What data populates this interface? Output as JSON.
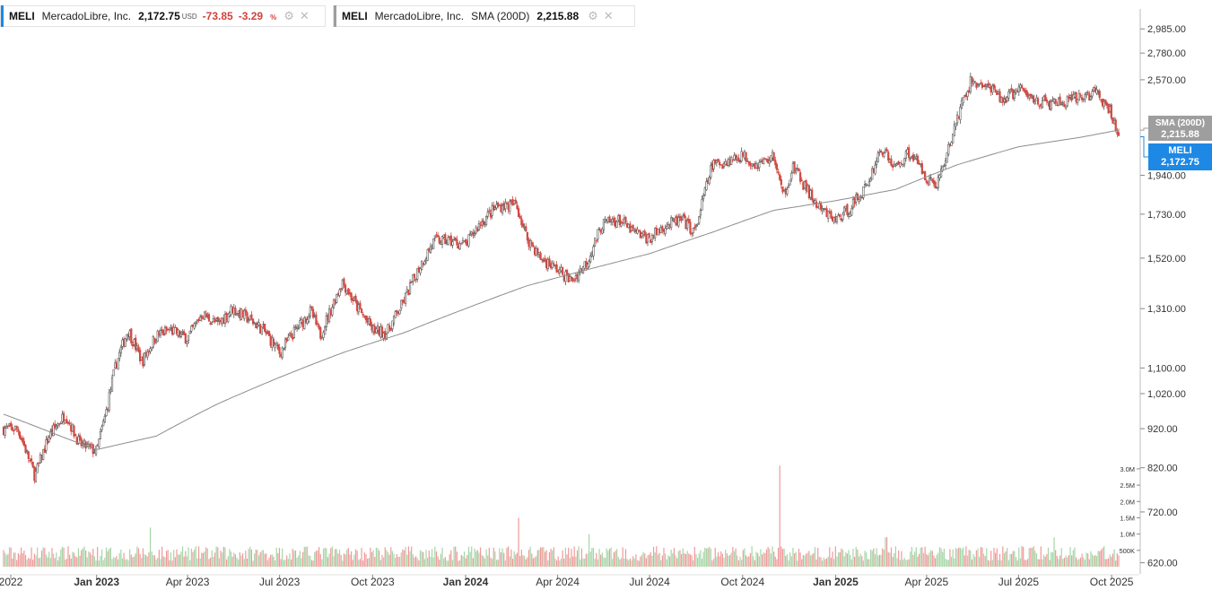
{
  "legend": {
    "main": {
      "symbol": "MELI",
      "name": "MercadoLibre, Inc.",
      "price": "2,172.75",
      "currency": "USD",
      "change": "-73.85",
      "change_pct": "-3.29",
      "pct_sign": "%",
      "accent": "#1e88e5"
    },
    "sma": {
      "symbol": "MELI",
      "name": "MercadoLibre, Inc.",
      "indicator": "SMA (200D)",
      "value": "2,215.88",
      "accent": "#9e9e9e"
    },
    "icons": [
      "settings-icon",
      "close-icon"
    ]
  },
  "tags": {
    "sma": {
      "label": "SMA (200D)",
      "value": "2,215.88",
      "color": "#9e9e9e"
    },
    "price": {
      "label": "MELI",
      "value": "2,172.75",
      "color": "#1e88e5"
    }
  },
  "chart_data": {
    "type": "candlestick",
    "y_scale": "log",
    "ylim": [
      600,
      3250
    ],
    "price_ticks": [
      {
        "value": 2985,
        "label": "2,985.00"
      },
      {
        "value": 2780,
        "label": "2,780.00"
      },
      {
        "value": 2570,
        "label": "2,570.00"
      },
      {
        "value": 1940,
        "label": "1,940.00"
      },
      {
        "value": 1730,
        "label": "1,730.00"
      },
      {
        "value": 1520,
        "label": "1,520.00"
      },
      {
        "value": 1310,
        "label": "1,310.00"
      },
      {
        "value": 1100,
        "label": "1,100.00"
      },
      {
        "value": 1020,
        "label": "1,020.00"
      },
      {
        "value": 920,
        "label": "920.00"
      },
      {
        "value": 820,
        "label": "820.00"
      },
      {
        "value": 720,
        "label": "720.00"
      },
      {
        "value": 620,
        "label": "620.00"
      }
    ],
    "volume_ticks": [
      "3.0M",
      "2.5M",
      "2.0M",
      "1.5M",
      "1.0M",
      "500K"
    ],
    "x_ticks": [
      {
        "date": "2022-10",
        "label": "2022",
        "bold": false
      },
      {
        "date": "2023-01",
        "label": "Jan 2023",
        "bold": true
      },
      {
        "date": "2023-04",
        "label": "Apr 2023",
        "bold": false
      },
      {
        "date": "2023-07",
        "label": "Jul 2023",
        "bold": false
      },
      {
        "date": "2023-10",
        "label": "Oct 2023",
        "bold": false
      },
      {
        "date": "2024-01",
        "label": "Jan 2024",
        "bold": true
      },
      {
        "date": "2024-04",
        "label": "Apr 2024",
        "bold": false
      },
      {
        "date": "2024-07",
        "label": "Jul 2024",
        "bold": false
      },
      {
        "date": "2024-10",
        "label": "Oct 2024",
        "bold": false
      },
      {
        "date": "2025-01",
        "label": "Jan 2025",
        "bold": true
      },
      {
        "date": "2025-04",
        "label": "Apr 2025",
        "bold": false
      },
      {
        "date": "2025-07",
        "label": "Jul 2025",
        "bold": false
      },
      {
        "date": "2025-10",
        "label": "Oct 2025",
        "bold": false
      }
    ],
    "price_path": [
      [
        "2022-10-15",
        920
      ],
      [
        "2022-11-01",
        800
      ],
      [
        "2022-11-15",
        900
      ],
      [
        "2022-12-01",
        960
      ],
      [
        "2022-12-15",
        880
      ],
      [
        "2023-01-01",
        860
      ],
      [
        "2023-01-10",
        960
      ],
      [
        "2023-01-20",
        1110
      ],
      [
        "2023-02-01",
        1230
      ],
      [
        "2023-02-15",
        1120
      ],
      [
        "2023-03-01",
        1210
      ],
      [
        "2023-03-15",
        1230
      ],
      [
        "2023-04-01",
        1200
      ],
      [
        "2023-04-15",
        1290
      ],
      [
        "2023-05-01",
        1250
      ],
      [
        "2023-05-15",
        1310
      ],
      [
        "2023-06-01",
        1270
      ],
      [
        "2023-06-15",
        1230
      ],
      [
        "2023-07-01",
        1150
      ],
      [
        "2023-07-15",
        1220
      ],
      [
        "2023-08-01",
        1300
      ],
      [
        "2023-08-10",
        1210
      ],
      [
        "2023-08-20",
        1300
      ],
      [
        "2023-09-01",
        1420
      ],
      [
        "2023-09-15",
        1320
      ],
      [
        "2023-10-01",
        1230
      ],
      [
        "2023-10-15",
        1220
      ],
      [
        "2023-11-01",
        1340
      ],
      [
        "2023-11-15",
        1470
      ],
      [
        "2023-12-01",
        1600
      ],
      [
        "2023-12-15",
        1600
      ],
      [
        "2024-01-01",
        1580
      ],
      [
        "2024-01-15",
        1680
      ],
      [
        "2024-02-01",
        1770
      ],
      [
        "2024-02-20",
        1780
      ],
      [
        "2024-03-01",
        1620
      ],
      [
        "2024-03-15",
        1520
      ],
      [
        "2024-04-01",
        1470
      ],
      [
        "2024-04-15",
        1420
      ],
      [
        "2024-05-01",
        1510
      ],
      [
        "2024-05-15",
        1680
      ],
      [
        "2024-06-01",
        1700
      ],
      [
        "2024-06-15",
        1640
      ],
      [
        "2024-07-01",
        1610
      ],
      [
        "2024-07-15",
        1670
      ],
      [
        "2024-08-01",
        1700
      ],
      [
        "2024-08-15",
        1640
      ],
      [
        "2024-09-01",
        2000
      ],
      [
        "2024-09-15",
        2020
      ],
      [
        "2024-10-01",
        2060
      ],
      [
        "2024-10-15",
        2000
      ],
      [
        "2024-11-01",
        2050
      ],
      [
        "2024-11-10",
        1820
      ],
      [
        "2024-11-20",
        1990
      ],
      [
        "2024-12-01",
        1880
      ],
      [
        "2024-12-15",
        1760
      ],
      [
        "2025-01-01",
        1700
      ],
      [
        "2025-01-15",
        1760
      ],
      [
        "2025-02-01",
        1880
      ],
      [
        "2025-02-15",
        2100
      ],
      [
        "2025-03-01",
        1980
      ],
      [
        "2025-03-15",
        2080
      ],
      [
        "2025-04-01",
        1930
      ],
      [
        "2025-04-10",
        1880
      ],
      [
        "2025-04-20",
        2030
      ],
      [
        "2025-05-01",
        2290
      ],
      [
        "2025-05-15",
        2560
      ],
      [
        "2025-06-01",
        2510
      ],
      [
        "2025-06-15",
        2420
      ],
      [
        "2025-07-01",
        2500
      ],
      [
        "2025-07-15",
        2430
      ],
      [
        "2025-08-01",
        2390
      ],
      [
        "2025-08-15",
        2400
      ],
      [
        "2025-09-01",
        2440
      ],
      [
        "2025-09-15",
        2480
      ],
      [
        "2025-10-01",
        2320
      ],
      [
        "2025-10-08",
        2172.75
      ]
    ],
    "sma_path": [
      [
        "2022-10-01",
        960
      ],
      [
        "2022-12-01",
        895
      ],
      [
        "2023-01-01",
        865
      ],
      [
        "2023-03-01",
        900
      ],
      [
        "2023-05-01",
        990
      ],
      [
        "2023-07-01",
        1070
      ],
      [
        "2023-09-01",
        1150
      ],
      [
        "2023-11-01",
        1220
      ],
      [
        "2024-01-01",
        1310
      ],
      [
        "2024-03-01",
        1400
      ],
      [
        "2024-05-01",
        1470
      ],
      [
        "2024-07-01",
        1540
      ],
      [
        "2024-09-01",
        1640
      ],
      [
        "2024-11-01",
        1750
      ],
      [
        "2025-01-01",
        1800
      ],
      [
        "2025-03-01",
        1860
      ],
      [
        "2025-05-01",
        2000
      ],
      [
        "2025-07-01",
        2110
      ],
      [
        "2025-09-01",
        2170
      ],
      [
        "2025-10-08",
        2215.88
      ]
    ],
    "volume_peaks": [
      {
        "date": "2023-02-23",
        "value": 1200000
      },
      {
        "date": "2024-02-22",
        "value": 1500000
      },
      {
        "date": "2024-05-02",
        "value": 1000000
      },
      {
        "date": "2024-11-07",
        "value": 3100000
      },
      {
        "date": "2025-02-20",
        "value": 900000
      },
      {
        "date": "2025-08-05",
        "value": 900000
      }
    ]
  }
}
